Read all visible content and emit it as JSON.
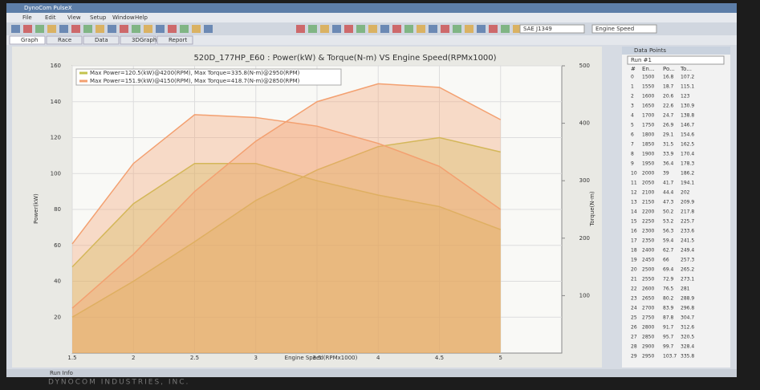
{
  "window": {
    "title": "DynoCom PulseX",
    "menu": [
      "File",
      "Edit",
      "View",
      "Setup",
      "Window",
      "Help"
    ],
    "tabs": [
      "Graph",
      "Race",
      "Data",
      "3DGraph",
      "Report"
    ],
    "dropdowns": [
      "SAE J1349",
      "Engine Speed"
    ],
    "status": "Run Info",
    "brand": "DYNOCOM INDUSTRIES, INC."
  },
  "data_panel": {
    "title": "Data Points",
    "run": "Run #1",
    "columns": [
      "#",
      "En...",
      "Po...",
      "To..."
    ],
    "rows": [
      [
        0,
        1500,
        16.8,
        107.2
      ],
      [
        1,
        1550,
        18.7,
        115.1
      ],
      [
        2,
        1600,
        20.6,
        123.0
      ],
      [
        3,
        1650,
        22.6,
        130.9
      ],
      [
        4,
        1700,
        24.7,
        138.8
      ],
      [
        5,
        1750,
        26.9,
        146.7
      ],
      [
        6,
        1800,
        29.1,
        154.6
      ],
      [
        7,
        1850,
        31.5,
        162.5
      ],
      [
        8,
        1900,
        33.9,
        170.4
      ],
      [
        9,
        1950,
        36.4,
        178.3
      ],
      [
        10,
        2000,
        39.0,
        186.2
      ],
      [
        11,
        2050,
        41.7,
        194.1
      ],
      [
        12,
        2100,
        44.4,
        202.0
      ],
      [
        13,
        2150,
        47.3,
        209.9
      ],
      [
        14,
        2200,
        50.2,
        217.8
      ],
      [
        15,
        2250,
        53.2,
        225.7
      ],
      [
        16,
        2300,
        56.3,
        233.6
      ],
      [
        17,
        2350,
        59.4,
        241.5
      ],
      [
        18,
        2400,
        62.7,
        249.4
      ],
      [
        19,
        2450,
        66.0,
        257.3
      ],
      [
        20,
        2500,
        69.4,
        265.2
      ],
      [
        21,
        2550,
        72.9,
        273.1
      ],
      [
        22,
        2600,
        76.5,
        281.0
      ],
      [
        23,
        2650,
        80.2,
        288.9
      ],
      [
        24,
        2700,
        83.9,
        296.8
      ],
      [
        25,
        2750,
        87.8,
        304.7
      ],
      [
        26,
        2800,
        91.7,
        312.6
      ],
      [
        27,
        2850,
        95.7,
        320.5
      ],
      [
        28,
        2900,
        99.7,
        328.4
      ],
      [
        29,
        2950,
        103.7,
        335.8
      ]
    ]
  },
  "chart_data": {
    "type": "area",
    "title": "520D_177HP_E60 : Power(kW) & Torque(N-m) VS Engine Speed(RPMx1000)",
    "x_label": "Engine Speed(RPMx1000)",
    "y_label": "Power(kW)",
    "y2_label": "Torque(N-m)",
    "x": [
      1.5,
      2,
      2.5,
      3,
      3.5,
      4,
      4.5,
      5
    ],
    "runs": [
      {
        "name": "Max Power=120.5(kW)@4200(RPM), Max Torque=335.8(N-m)@2950(RPM)",
        "color": "#c3c34e",
        "power": [
          20,
          40,
          62,
          85,
          102,
          115,
          120,
          112
        ],
        "torque": [
          150,
          260,
          330,
          330,
          300,
          275,
          255,
          215
        ]
      },
      {
        "name": "Max Power=151.9(kW)@4150(RPM), Max Torque=418.7(N-m)@2850(RPM)",
        "color": "#f3a070",
        "power": [
          25,
          55,
          90,
          118,
          140,
          150,
          148,
          130
        ],
        "torque": [
          190,
          330,
          415,
          410,
          395,
          365,
          325,
          250
        ]
      }
    ],
    "xlim": [
      1.5,
      5.5
    ],
    "xticks": [
      1.5,
      2,
      2.5,
      3,
      3.5,
      4,
      4.5,
      5
    ],
    "ylim": [
      0,
      160
    ],
    "yticks": [
      20,
      40,
      60,
      80,
      100,
      120,
      140,
      160
    ],
    "y2lim": [
      0,
      500
    ],
    "y2ticks": [
      100,
      200,
      300,
      400,
      500
    ],
    "grid": true
  }
}
